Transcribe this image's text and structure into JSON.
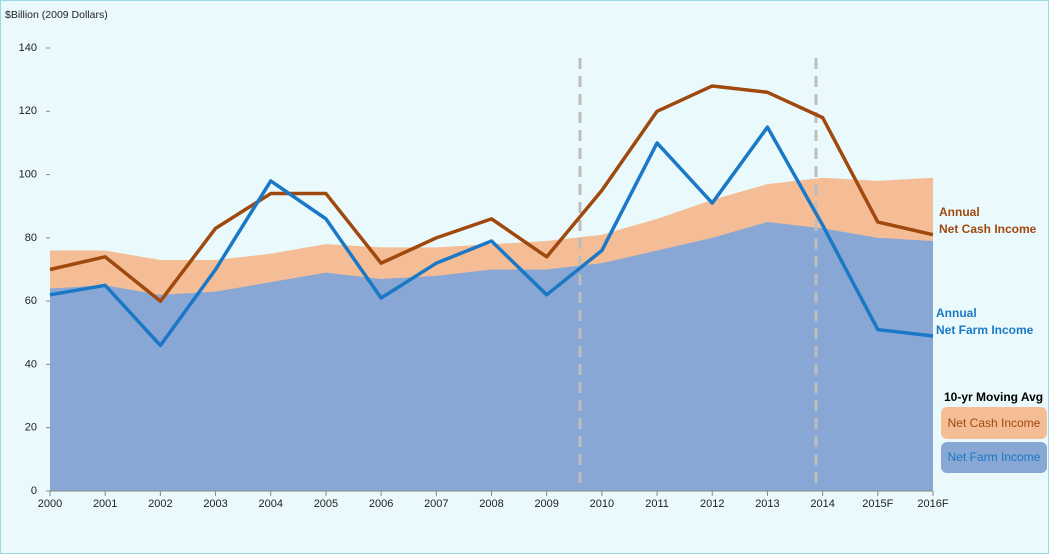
{
  "chart_data": {
    "type": "line",
    "y_label": "$Billion (2009 Dollars)",
    "legend_title": "10-yr Moving Avg",
    "categories": [
      "2000",
      "2001",
      "2002",
      "2003",
      "2004",
      "2005",
      "2006",
      "2007",
      "2008",
      "2009",
      "2010",
      "2011",
      "2012",
      "2013",
      "2014",
      "2015F",
      "2016F"
    ],
    "ylim": [
      0,
      140
    ],
    "yticks": [
      0,
      20,
      40,
      60,
      80,
      100,
      120,
      140
    ],
    "series": [
      {
        "name": "Net Cash Income",
        "type": "area",
        "color": "#f5bd96",
        "text_color": "#a0490f",
        "values": [
          76,
          76,
          73,
          73,
          75,
          78,
          77,
          77,
          78,
          79,
          81,
          86,
          92,
          97,
          99,
          98,
          99
        ]
      },
      {
        "name": "Net Farm Income",
        "type": "area",
        "color": "#88a7d4",
        "text_color": "#1b78c6",
        "values": [
          64,
          65,
          62,
          63,
          66,
          69,
          67,
          68,
          70,
          70,
          72,
          76,
          80,
          85,
          83,
          80,
          79
        ]
      },
      {
        "name": [
          "Annual",
          "Net Cash Income"
        ],
        "type": "line",
        "color": "#a0490f",
        "values": [
          70,
          74,
          60,
          83,
          94,
          94,
          72,
          80,
          86,
          74,
          95,
          120,
          128,
          126,
          118,
          85,
          81
        ]
      },
      {
        "name": [
          "Annual",
          "Net Farm Income"
        ],
        "type": "line",
        "color": "#1b78c6",
        "values": [
          62,
          65,
          46,
          70,
          98,
          86,
          61,
          72,
          79,
          62,
          76,
          110,
          91,
          115,
          84,
          51,
          49
        ]
      }
    ]
  }
}
